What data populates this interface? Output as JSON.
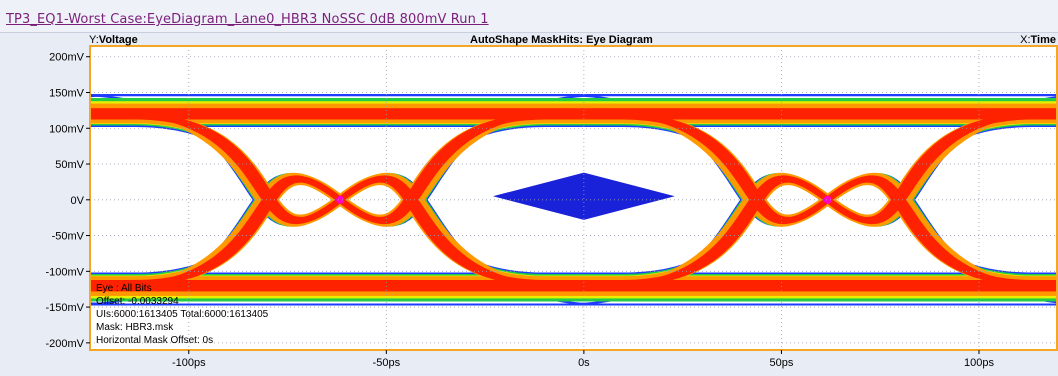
{
  "window": {
    "title": "TP3_EQ1-Worst Case:EyeDiagram_Lane0_HBR3 NoSSC 0dB 800mV Run 1"
  },
  "header": {
    "y_prefix": "Y:",
    "y_name": "Voltage",
    "chart_title": "AutoShape MaskHits: Eye Diagram",
    "x_prefix": "X:",
    "x_name": "Time"
  },
  "info": {
    "eye": "Eye : All Bits",
    "offset": "Offset: -0.0033294",
    "uis": "UIs:6000:1613405  Total:6000:1613405",
    "mask": "Mask: HBR3.msk",
    "hmask": "Horizontal Mask Offset: 0s"
  },
  "colors": {
    "plot_border": "#f5a623",
    "grid": "#9aa0ad",
    "mask": "#1a22d9",
    "eye_hot": "#ff2200",
    "eye_warm": "#ff9900",
    "eye_mid": "#e8f000",
    "eye_cool": "#22cc44",
    "eye_edge": "#1e3cff"
  },
  "chart_data": {
    "type": "eye-diagram",
    "title": "AutoShape MaskHits: Eye Diagram",
    "xlabel": "Time",
    "ylabel": "Voltage",
    "x_unit": "ps",
    "y_unit": "mV",
    "xlim": [
      -125,
      120
    ],
    "ylim": [
      -210,
      215
    ],
    "x_ticks": [
      {
        "value": -100,
        "label": "-100ps"
      },
      {
        "value": -50,
        "label": "-50ps"
      },
      {
        "value": 0,
        "label": "0s"
      },
      {
        "value": 50,
        "label": "50ps"
      },
      {
        "value": 100,
        "label": "100ps"
      }
    ],
    "y_ticks": [
      {
        "value": 200,
        "label": "200mV"
      },
      {
        "value": 150,
        "label": "150mV"
      },
      {
        "value": 100,
        "label": "100mV"
      },
      {
        "value": 50,
        "label": "50mV"
      },
      {
        "value": 0,
        "label": "0V"
      },
      {
        "value": -50,
        "label": "-50mV"
      },
      {
        "value": -100,
        "label": "-100mV"
      },
      {
        "value": -150,
        "label": "-150mV"
      },
      {
        "value": -200,
        "label": "-200mV"
      }
    ],
    "grid": true,
    "crossings_ps": [
      -61.7,
      61.7
    ],
    "unit_interval_ps": 123.4,
    "high_level_mv": 120,
    "low_level_mv": -120,
    "mask": {
      "center_ps": 0,
      "center_mv": 5,
      "half_width_ps": 23,
      "half_height_mv": 33
    }
  }
}
